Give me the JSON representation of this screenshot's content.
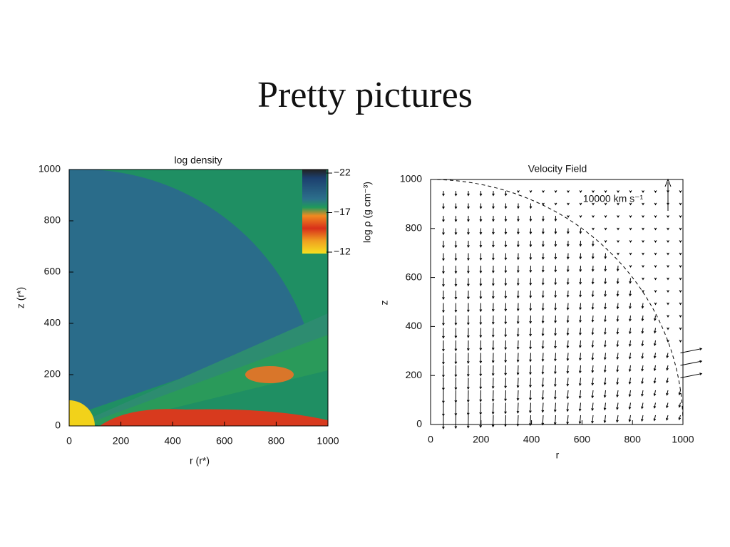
{
  "title": "Pretty pictures",
  "figures": [
    {
      "title": "log density",
      "xlabel": "r (r*)",
      "ylabel": "z (r*)",
      "xticks": [
        "0",
        "200",
        "400",
        "600",
        "800",
        "1000"
      ],
      "yticks": [
        "0",
        "200",
        "400",
        "600",
        "800",
        "1000"
      ],
      "colorbar": {
        "label": "log ρ (g cm⁻³)",
        "ticks": [
          "−22",
          "−17",
          "−12"
        ]
      }
    },
    {
      "title": "Velocity Field",
      "xlabel": "r",
      "ylabel": "z",
      "xticks": [
        "0",
        "200",
        "400",
        "600",
        "800",
        "1000"
      ],
      "yticks": [
        "0",
        "200",
        "400",
        "600",
        "800",
        "1000"
      ],
      "annotation": "10000 km s⁻¹"
    }
  ]
}
